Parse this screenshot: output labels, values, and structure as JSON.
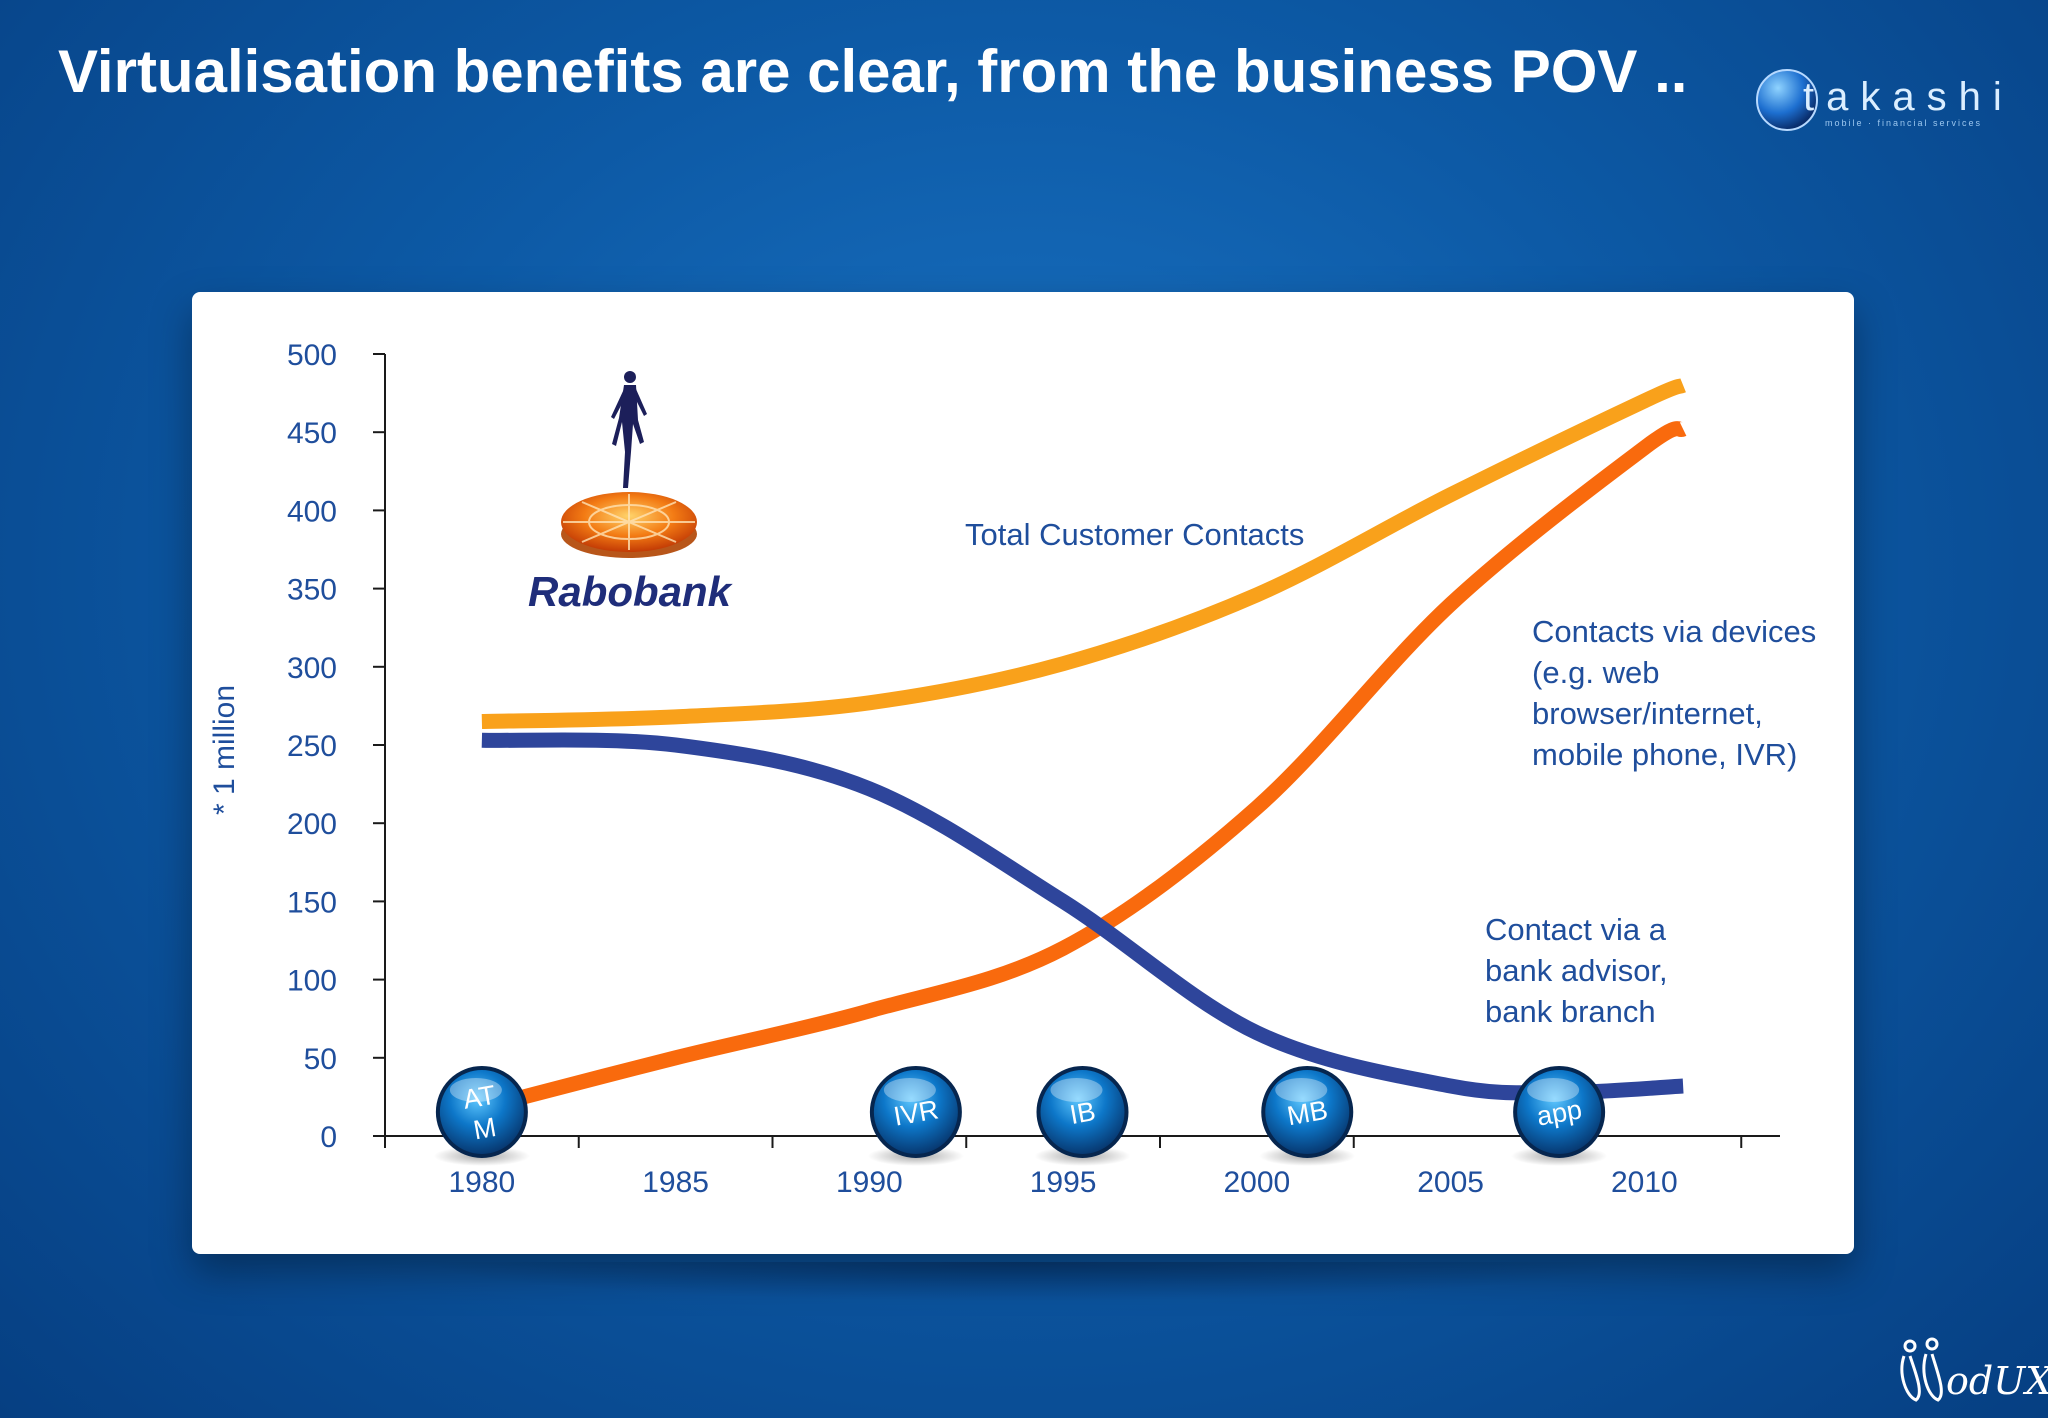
{
  "slide": {
    "title": "Virtualisation benefits are clear, from the business POV ..",
    "brand_logo_text": "takashi",
    "brand_logo_subtext": "mobile · financial services",
    "footer_logo_text": "odUX"
  },
  "chart_data": {
    "type": "line",
    "title": "",
    "ylabel": "* 1 million",
    "xlabel": "",
    "xlim": [
      1977.5,
      2013.5
    ],
    "ylim": [
      0,
      500
    ],
    "x_ticks": [
      1980,
      1985,
      1990,
      1995,
      2000,
      2005,
      2010
    ],
    "y_ticks": [
      0,
      50,
      100,
      150,
      200,
      250,
      300,
      350,
      400,
      450,
      500
    ],
    "grid": false,
    "logo": {
      "text": "Rabobank"
    },
    "series": [
      {
        "name": "Total Customer Contacts",
        "color": "#f9a11b",
        "x": [
          1980,
          1985,
          1990,
          1995,
          2000,
          2005,
          2010,
          2011
        ],
        "values": [
          265,
          268,
          277,
          302,
          346,
          410,
          470,
          480
        ]
      },
      {
        "name": "Contacts via devices (e.g. web browser/internet, mobile phone, IVR)",
        "color": "#f96a0d",
        "x": [
          1980,
          1985,
          1990,
          1995,
          2000,
          2005,
          2010,
          2011
        ],
        "values": [
          18,
          50,
          80,
          120,
          210,
          340,
          440,
          452
        ]
      },
      {
        "name": "Contact via a bank advisor, bank branch",
        "color": "#2e459b",
        "x": [
          1980,
          1985,
          1990,
          1995,
          2000,
          2005,
          2008,
          2011
        ],
        "values": [
          253,
          250,
          222,
          150,
          66,
          32,
          28,
          32
        ]
      }
    ],
    "annotations": [
      {
        "text": "Total Customer Contacts"
      },
      {
        "text": "Contacts via devices\n(e.g. web\nbrowser/internet,\nmobile phone, IVR)"
      },
      {
        "text": "Contact via a\nbank advisor,\nbank branch"
      }
    ],
    "channel_markers": [
      {
        "label": "AT\nM",
        "year": 1980,
        "icon": "channel-bubble-icon"
      },
      {
        "label": "IVR",
        "year": 1991.2,
        "icon": "channel-bubble-icon"
      },
      {
        "label": "IB",
        "year": 1995.5,
        "icon": "channel-bubble-icon"
      },
      {
        "label": "MB",
        "year": 2001.3,
        "icon": "channel-bubble-icon"
      },
      {
        "label": "app",
        "year": 2007.8,
        "icon": "channel-bubble-icon"
      }
    ]
  }
}
